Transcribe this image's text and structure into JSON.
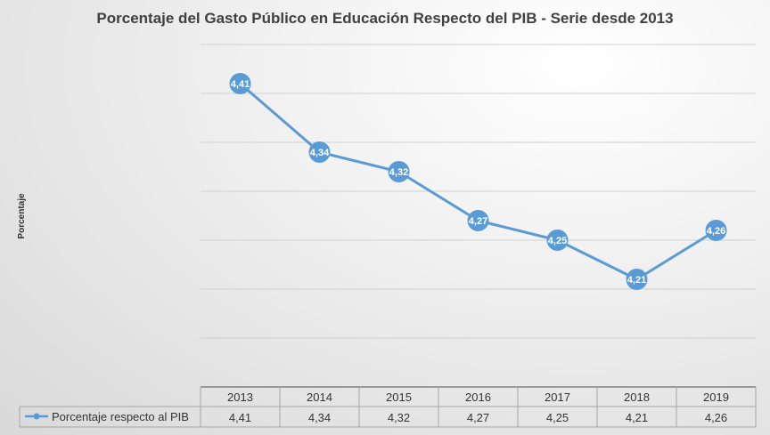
{
  "chart_data": {
    "type": "line",
    "title": "Porcentaje del Gasto Público en Educación Respecto del PIB - Serie desde 2013",
    "ylabel": "Porcentaje",
    "xlabel": "",
    "categories": [
      "2013",
      "2014",
      "2015",
      "2016",
      "2017",
      "2018",
      "2019"
    ],
    "series": [
      {
        "name": "Porcentaje respecto al PIB",
        "values": [
          4.41,
          4.34,
          4.32,
          4.27,
          4.25,
          4.21,
          4.26
        ],
        "labels": [
          "4,41",
          "4,34",
          "4,32",
          "4,27",
          "4,25",
          "4,21",
          "4,26"
        ],
        "color": "#5b9bd5"
      }
    ],
    "ylim": [
      4.1,
      4.45
    ],
    "grid": true,
    "y_tick_labels_shown": false,
    "data_table": true,
    "legend": "data-table"
  }
}
